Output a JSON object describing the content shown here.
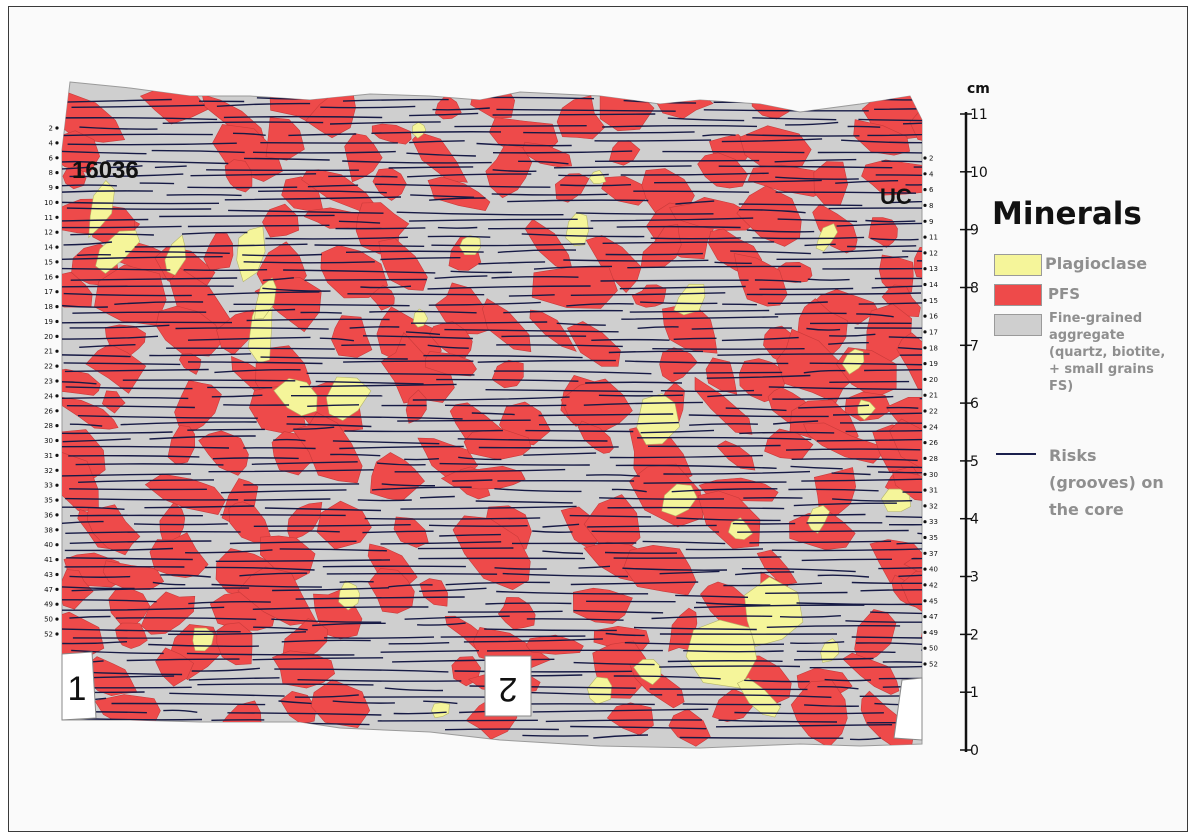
{
  "scale": {
    "unit": "cm",
    "ticks": [
      "0",
      "1",
      "2",
      "3",
      "4",
      "5",
      "6",
      "7",
      "8",
      "9",
      "10",
      "11"
    ]
  },
  "specimen": {
    "id_label": "16036",
    "corner_label": "UC",
    "piece_labels": [
      "1",
      "2"
    ],
    "left_marker_numbers": [
      "2",
      "4",
      "6",
      "8",
      "9",
      "10",
      "11",
      "12",
      "14",
      "15",
      "16",
      "17",
      "18",
      "19",
      "20",
      "21",
      "22",
      "23",
      "24",
      "26",
      "28",
      "30",
      "31",
      "32",
      "33",
      "35",
      "36",
      "38",
      "40",
      "41",
      "43",
      "47",
      "49",
      "50",
      "52"
    ],
    "right_marker_numbers": [
      "2",
      "4",
      "6",
      "8",
      "9",
      "11",
      "12",
      "13",
      "14",
      "15",
      "16",
      "17",
      "18",
      "19",
      "20",
      "21",
      "22",
      "24",
      "26",
      "28",
      "30",
      "31",
      "32",
      "33",
      "35",
      "37",
      "40",
      "42",
      "45",
      "47",
      "49",
      "50",
      "52"
    ]
  },
  "legend": {
    "title": "Minerals",
    "items": [
      {
        "label": "Plagioclase",
        "color": "#f5f59a",
        "lines": [
          "Plagioclase"
        ]
      },
      {
        "label": "PFS",
        "color": "#ee4a4a",
        "lines": [
          "PFS"
        ]
      },
      {
        "label": "Fine-grained aggregate (quartz, biotite, + small grains FS)",
        "color": "#cfcfcf",
        "lines": [
          "Fine-grained",
          "aggregate",
          "(quartz, biotite,",
          "+ small grains",
          "FS)"
        ]
      },
      {
        "label": "Risks (grooves) on the core",
        "color": "#1a1f4d",
        "lines": [
          "Risks",
          "(grooves) on",
          "the core"
        ]
      }
    ]
  },
  "colors": {
    "matrix": "#cfcfcf",
    "pfs": "#ee4a4a",
    "plagioclase": "#f5f59a",
    "groove": "#161a45"
  }
}
